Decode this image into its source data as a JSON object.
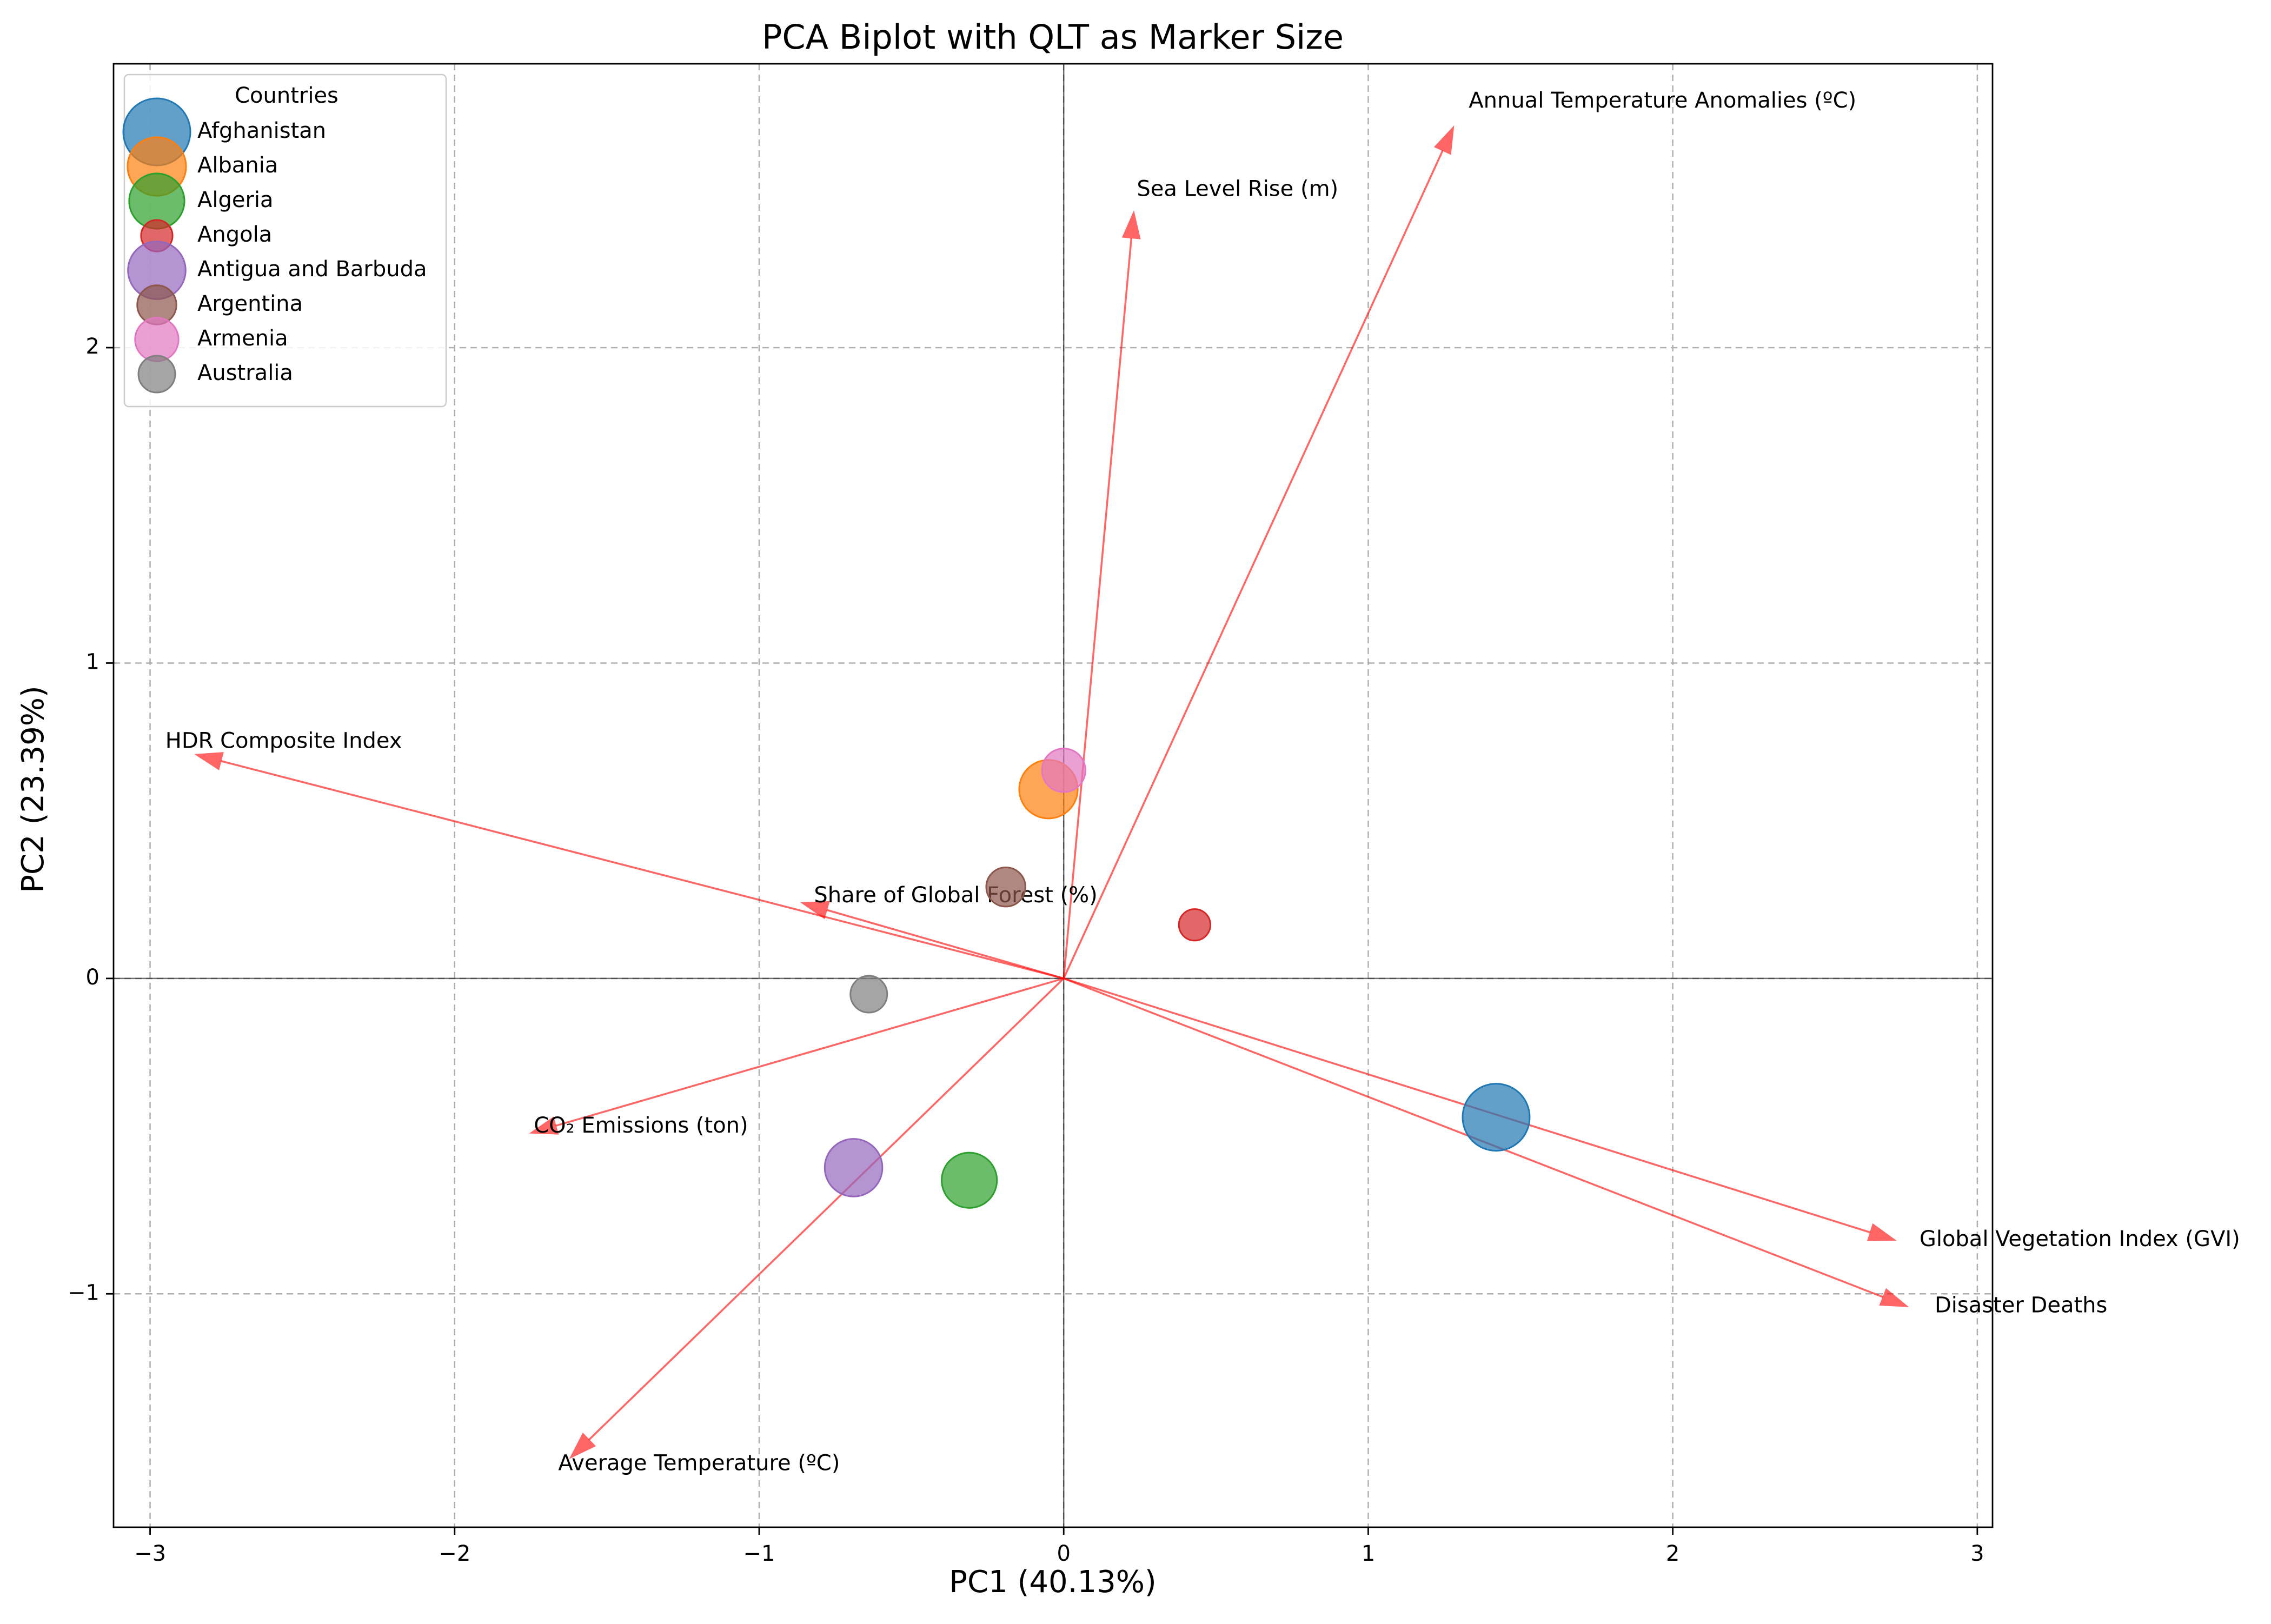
{
  "chart_data": {
    "type": "scatter",
    "title": "PCA Biplot with QLT as Marker Size",
    "xlabel": "PC1 (40.13%)",
    "ylabel": "PC2 (23.39%)",
    "xlim": [
      -3.12,
      3.05
    ],
    "ylim": [
      -1.74,
      2.9
    ],
    "x_ticks": [
      -3,
      -2,
      -1,
      0,
      1,
      2,
      3
    ],
    "y_ticks": [
      -1,
      0,
      1,
      2
    ],
    "x_tick_labels": [
      "−3",
      "−2",
      "−1",
      "0",
      "1",
      "2",
      "3"
    ],
    "y_tick_labels": [
      "−1",
      "0",
      "1",
      "2"
    ],
    "grid": true,
    "legend": {
      "title": "Countries",
      "placement": "upper-left"
    },
    "points": [
      {
        "name": "Afghanistan",
        "x": 1.42,
        "y": -0.44,
        "qlt": 1.0,
        "color": "#1f77b4"
      },
      {
        "name": "Albania",
        "x": -0.05,
        "y": 0.6,
        "qlt": 0.76,
        "color": "#ff7f0e"
      },
      {
        "name": "Algeria",
        "x": -0.31,
        "y": -0.64,
        "qlt": 0.68,
        "color": "#2ca02c"
      },
      {
        "name": "Angola",
        "x": 0.43,
        "y": 0.17,
        "qlt": 0.22,
        "color": "#d62728"
      },
      {
        "name": "Antigua and Barbuda",
        "x": -0.69,
        "y": -0.6,
        "qlt": 0.74,
        "color": "#9467bd"
      },
      {
        "name": "Argentina",
        "x": -0.19,
        "y": 0.29,
        "qlt": 0.34,
        "color": "#8c564b"
      },
      {
        "name": "Armenia",
        "x": 0.0,
        "y": 0.66,
        "qlt": 0.42,
        "color": "#e377c2"
      },
      {
        "name": "Australia",
        "x": -0.64,
        "y": -0.05,
        "qlt": 0.3,
        "color": "#7f7f7f"
      }
    ],
    "loadings": [
      {
        "name": "Annual Temperature Anomalies (ºC)",
        "x": 1.28,
        "y": 2.7,
        "label_x": 1.33,
        "label_y": 2.78
      },
      {
        "name": "Sea Level Rise (m)",
        "x": 0.23,
        "y": 2.43,
        "label_x": 0.24,
        "label_y": 2.5
      },
      {
        "name": "HDR Composite Index",
        "x": -2.85,
        "y": 0.71,
        "label_x": -2.95,
        "label_y": 0.75
      },
      {
        "name": "Share of Global Forest (%)",
        "x": -0.86,
        "y": 0.24,
        "label_x": -0.82,
        "label_y": 0.26
      },
      {
        "name": "CO₂ Emissions (ton)",
        "x": -1.75,
        "y": -0.49,
        "label_x": -1.74,
        "label_y": -0.47
      },
      {
        "name": "Average Temperature (ºC)",
        "x": -1.62,
        "y": -1.52,
        "label_x": -1.66,
        "label_y": -1.54
      },
      {
        "name": "Global Vegetation Index (GVI)",
        "x": 2.73,
        "y": -0.83,
        "label_x": 2.81,
        "label_y": -0.83
      },
      {
        "name": "Disaster Deaths",
        "x": 2.77,
        "y": -1.04,
        "label_x": 2.86,
        "label_y": -1.04
      }
    ]
  }
}
